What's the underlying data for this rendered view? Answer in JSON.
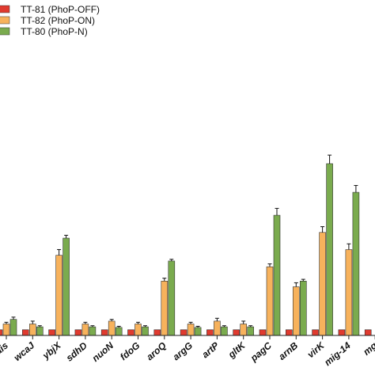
{
  "chart_data": {
    "type": "bar",
    "title": "",
    "xlabel": "",
    "ylabel": "",
    "categories": [
      "rais",
      "wcaJ",
      "ybjX",
      "sdhD",
      "nuoN",
      "fdoG",
      "aroQ",
      "argG",
      "artP",
      "gltK",
      "pagC",
      "arnB",
      "virK",
      "mig-14",
      "mg"
    ],
    "series": [
      {
        "name": "TT-81 (PhoP-OFF)",
        "color": "#e03a2f",
        "values": [
          0.1,
          0.1,
          0.1,
          0.1,
          0.1,
          0.1,
          0.1,
          0.1,
          0.1,
          0.1,
          0.1,
          0.1,
          0.1,
          0.1,
          0.1
        ],
        "errors": [
          0,
          0,
          0,
          0,
          0,
          0,
          0,
          0,
          0,
          0,
          0,
          0,
          0,
          0,
          0
        ]
      },
      {
        "name": "TT-82 (PhoP-ON)",
        "color": "#f7b25c",
        "values": [
          0.2,
          0.2,
          1.4,
          0.2,
          0.25,
          0.2,
          0.95,
          0.2,
          0.25,
          0.2,
          1.2,
          0.85,
          1.8,
          1.5,
          null
        ],
        "errors": [
          0.03,
          0.05,
          0.1,
          0.03,
          0.03,
          0.03,
          0.05,
          0.03,
          0.05,
          0.05,
          0.05,
          0.07,
          0.1,
          0.1,
          0
        ]
      },
      {
        "name": "TT-80 (PhoP-N)",
        "color": "#7aab4e",
        "values": [
          0.28,
          0.15,
          1.7,
          0.15,
          0.14,
          0.15,
          1.3,
          0.14,
          0.15,
          0.15,
          2.1,
          0.95,
          3.0,
          2.5,
          null
        ],
        "errors": [
          0.04,
          0.02,
          0.05,
          0.02,
          0.02,
          0.02,
          0.03,
          0.02,
          0.02,
          0.02,
          0.12,
          0.03,
          0.15,
          0.12,
          0
        ]
      }
    ],
    "ylim": [
      0,
      3.4
    ],
    "grid": false,
    "legend_position": "top-left"
  }
}
